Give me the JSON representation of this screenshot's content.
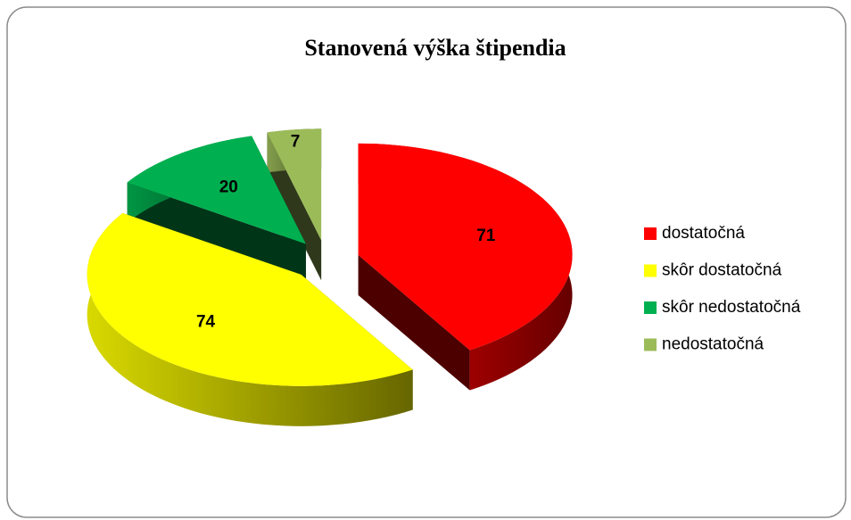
{
  "chart_data": {
    "type": "pie",
    "title": "Stanovená výška štipendia",
    "categories": [
      "dostatočná",
      "skôr dostatočná",
      "skôr nedostatočná",
      "nedostatočná"
    ],
    "values": [
      71,
      74,
      20,
      7
    ],
    "colors": [
      "#ff0000",
      "#ffff00",
      "#00b050",
      "#9bbb59"
    ],
    "legend": "right"
  }
}
